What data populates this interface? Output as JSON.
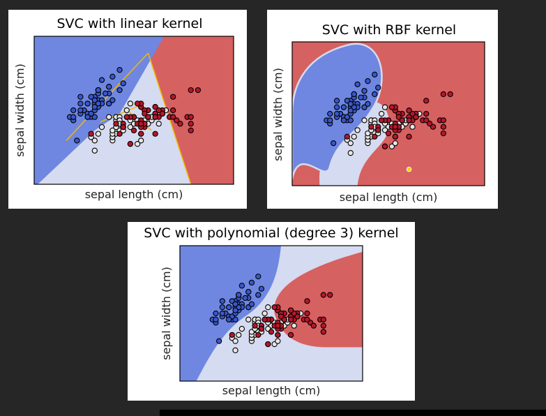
{
  "colors": {
    "region_blue": "#6f87e0",
    "region_light": "#d5dbf0",
    "region_red": "#d66161",
    "class0": "#3a57c9",
    "class1": "#e6e6e6",
    "class2": "#b5172b",
    "boundary": "#f2b900",
    "point_edge": "#000000"
  },
  "chart_data": [
    {
      "type": "scatter",
      "title": "SVC with linear kernel",
      "xlabel": "sepal length (cm)",
      "ylabel": "sepal width (cm)",
      "xlim": [
        3.3,
        8.9
      ],
      "ylim": [
        1.0,
        5.4
      ],
      "grid": false,
      "legend": "none",
      "boundary_lines": [
        {
          "x": [
            4.2,
            6.5
          ],
          "y": [
            2.3,
            4.9
          ]
        },
        {
          "x": [
            6.5,
            7.7
          ],
          "y": [
            4.9,
            1.0
          ]
        },
        {
          "x": [
            5.15,
            6.4
          ],
          "y": [
            2.85,
            3.4
          ]
        },
        {
          "x": [
            5.8,
            6.6
          ],
          "y": [
            3.3,
            2.6
          ]
        }
      ],
      "series": [
        {
          "class": 0,
          "x": [
            5.1,
            4.9,
            4.7,
            4.6,
            5.0,
            5.4,
            4.6,
            5.0,
            4.4,
            4.9,
            5.4,
            4.8,
            4.8,
            4.3,
            5.8,
            5.7,
            5.4,
            5.1,
            5.7,
            5.1,
            5.4,
            5.1,
            4.6,
            5.1,
            4.8,
            5.0,
            5.0,
            5.2,
            5.2,
            4.7,
            4.8,
            5.4,
            5.2,
            5.5,
            4.9,
            5.0,
            5.5,
            4.9,
            4.4,
            5.1,
            5.0,
            4.5,
            4.4,
            5.0,
            5.1,
            4.8,
            5.1,
            4.6,
            5.3,
            5.0
          ],
          "y": [
            3.5,
            3.0,
            3.2,
            3.1,
            3.6,
            3.9,
            3.4,
            3.4,
            2.9,
            3.1,
            3.7,
            3.4,
            3.0,
            3.0,
            4.0,
            4.4,
            3.9,
            3.5,
            3.8,
            3.8,
            3.4,
            3.7,
            3.6,
            3.3,
            3.4,
            3.0,
            3.4,
            3.5,
            3.4,
            3.2,
            3.1,
            3.4,
            4.1,
            4.2,
            3.1,
            3.2,
            3.5,
            3.6,
            3.0,
            3.4,
            3.5,
            2.3,
            3.2,
            3.5,
            3.8,
            3.0,
            3.8,
            3.2,
            3.7,
            3.3
          ]
        },
        {
          "class": 1,
          "x": [
            7.0,
            6.4,
            6.9,
            5.5,
            6.5,
            5.7,
            6.3,
            4.9,
            6.6,
            5.2,
            5.0,
            5.9,
            6.0,
            6.1,
            5.6,
            6.7,
            5.6,
            5.8,
            6.2,
            5.6,
            5.9,
            6.1,
            6.3,
            6.1,
            6.4,
            6.6,
            6.8,
            6.7,
            6.0,
            5.7,
            5.5,
            5.5,
            5.8,
            6.0,
            5.4,
            6.0,
            6.7,
            6.3,
            5.6,
            5.5,
            5.5,
            6.1,
            5.8,
            5.0,
            5.6,
            5.7,
            5.7,
            6.2,
            5.1,
            5.7
          ],
          "y": [
            3.2,
            3.2,
            3.1,
            2.3,
            2.8,
            2.8,
            3.3,
            2.4,
            2.9,
            2.7,
            2.0,
            3.0,
            2.2,
            2.9,
            2.9,
            3.1,
            3.0,
            2.7,
            2.2,
            2.5,
            3.2,
            2.8,
            2.5,
            2.8,
            2.9,
            3.0,
            2.8,
            3.0,
            2.9,
            2.6,
            2.4,
            2.4,
            2.7,
            2.7,
            3.0,
            3.4,
            3.1,
            2.3,
            3.0,
            2.5,
            2.6,
            3.0,
            2.6,
            2.3,
            2.7,
            3.0,
            2.9,
            2.9,
            2.5,
            2.8
          ]
        },
        {
          "class": 2,
          "x": [
            6.3,
            5.8,
            7.1,
            6.3,
            6.5,
            7.6,
            4.9,
            7.3,
            6.7,
            7.2,
            6.5,
            6.4,
            6.8,
            5.7,
            5.8,
            6.4,
            6.5,
            7.7,
            7.7,
            6.0,
            6.9,
            5.6,
            7.7,
            6.3,
            6.7,
            7.2,
            6.2,
            6.1,
            6.4,
            7.2,
            7.4,
            7.9,
            6.4,
            6.3,
            6.1,
            7.7,
            6.3,
            6.4,
            6.0,
            6.9,
            6.7,
            6.9,
            5.8,
            6.8,
            6.7,
            6.7,
            6.3,
            6.5,
            6.2,
            5.9
          ],
          "y": [
            3.3,
            2.7,
            3.0,
            2.9,
            3.0,
            3.0,
            2.5,
            2.9,
            2.5,
            3.6,
            3.2,
            2.7,
            3.0,
            2.5,
            2.8,
            3.2,
            3.0,
            3.8,
            2.6,
            2.2,
            3.2,
            2.8,
            2.8,
            2.7,
            3.3,
            3.2,
            2.8,
            3.0,
            2.8,
            3.0,
            2.8,
            3.8,
            2.8,
            2.8,
            2.6,
            3.0,
            3.4,
            3.1,
            3.0,
            3.1,
            3.1,
            3.1,
            2.7,
            3.2,
            3.3,
            3.0,
            2.5,
            3.0,
            3.4,
            3.0
          ]
        }
      ]
    },
    {
      "type": "scatter",
      "title": "SVC with RBF kernel",
      "xlabel": "sepal length (cm)",
      "ylabel": "sepal width (cm)",
      "xlim": [
        3.3,
        8.9
      ],
      "ylim": [
        1.0,
        5.4
      ],
      "grid": false,
      "legend": "none",
      "series": [
        {
          "class": 0,
          "ref": "same points as chart 1"
        },
        {
          "class": 1,
          "extra_point": {
            "x": 6.7,
            "y": 1.5
          }
        }
      ]
    },
    {
      "type": "scatter",
      "title": "SVC with polynomial (degree 3) kernel",
      "xlabel": "sepal length (cm)",
      "ylabel": "sepal width (cm)",
      "xlim": [
        3.3,
        8.9
      ],
      "ylim": [
        1.0,
        5.4
      ],
      "grid": false,
      "legend": "none",
      "series": [
        {
          "class": 0,
          "ref": "same points as chart 1"
        }
      ]
    }
  ]
}
